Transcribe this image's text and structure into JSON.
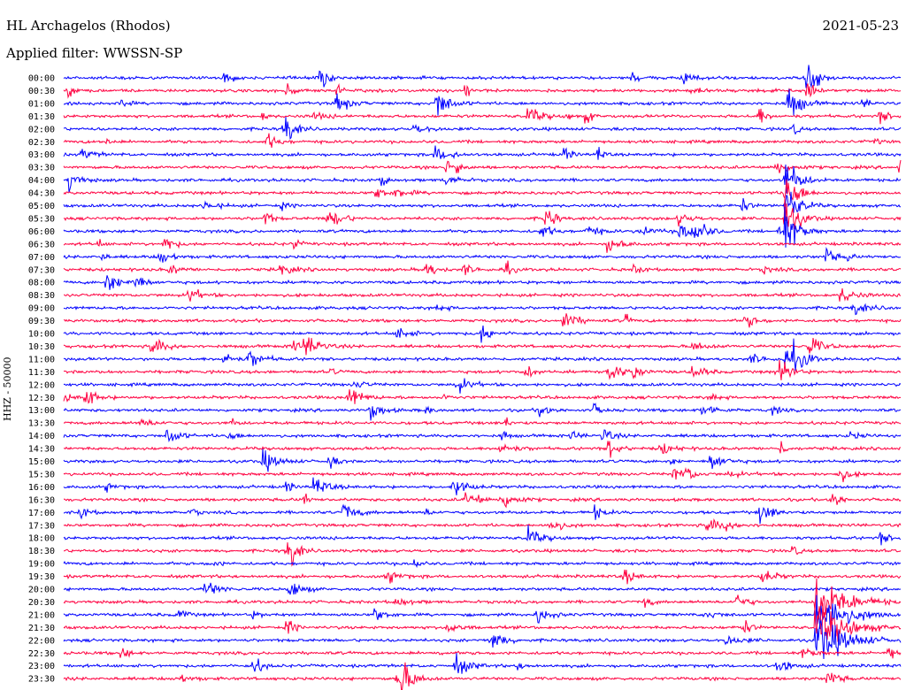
{
  "header": {
    "station": "HL Archagelos (Rhodos)",
    "filter": "Applied filter: WWSSN-SP",
    "date": "2021-05-23",
    "channel": "HHZ - 50000"
  },
  "chart_data": {
    "type": "line",
    "title": "HL Archagelos (Rhodos)",
    "subtitle": "Applied filter: WWSSN-SP",
    "date": "2021-05-23",
    "ylabel": "HHZ - 50000",
    "traces": [
      "00:00",
      "00:30",
      "01:00",
      "01:30",
      "02:00",
      "02:30",
      "03:00",
      "03:30",
      "04:00",
      "04:30",
      "05:00",
      "05:30",
      "06:00",
      "06:30",
      "07:00",
      "07:30",
      "08:00",
      "08:30",
      "09:00",
      "09:30",
      "10:00",
      "10:30",
      "11:00",
      "11:30",
      "12:00",
      "12:30",
      "13:00",
      "13:30",
      "14:00",
      "14:30",
      "15:00",
      "15:30",
      "16:00",
      "16:30",
      "17:00",
      "17:30",
      "18:00",
      "18:30",
      "19:00",
      "19:30",
      "20:00",
      "20:30",
      "21:00",
      "21:30",
      "22:00",
      "22:30",
      "23:00",
      "23:30"
    ],
    "colors": [
      "#0000ff",
      "#ff0040"
    ],
    "grid": false
  }
}
